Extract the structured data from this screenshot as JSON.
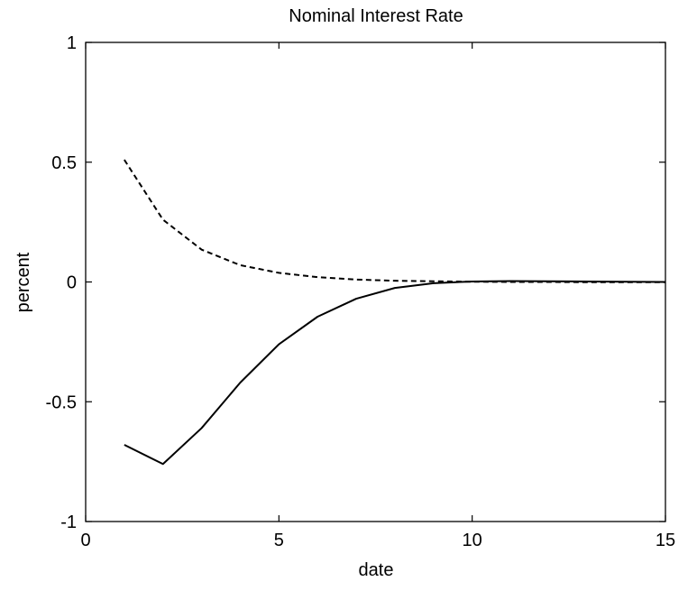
{
  "chart_data": {
    "type": "line",
    "title": "Nominal Interest Rate",
    "xlabel": "date",
    "ylabel": "percent",
    "xlim": [
      0,
      15
    ],
    "ylim": [
      -1,
      1
    ],
    "x_ticks": [
      0,
      5,
      10,
      15
    ],
    "y_ticks": [
      -1,
      -0.5,
      0,
      0.5,
      1
    ],
    "x_tick_labels": [
      "0",
      "5",
      "10",
      "15"
    ],
    "y_tick_labels": [
      "-1",
      "-0.5",
      "0",
      "0.5",
      "1"
    ],
    "grid": false,
    "series": [
      {
        "style": "solid",
        "color": "#000000",
        "x": [
          1,
          2,
          3,
          4,
          5,
          6,
          7,
          8,
          9,
          10,
          11,
          12,
          13,
          14,
          15
        ],
        "y": [
          -0.68,
          -0.76,
          -0.61,
          -0.42,
          -0.26,
          -0.145,
          -0.07,
          -0.025,
          -0.005,
          0.002,
          0.004,
          0.003,
          0.002,
          0.001,
          0.0
        ]
      },
      {
        "style": "dashed",
        "color": "#000000",
        "x": [
          1,
          2,
          3,
          4,
          5,
          6,
          7,
          8,
          9,
          10,
          11,
          12,
          13,
          14,
          15
        ],
        "y": [
          0.51,
          0.26,
          0.135,
          0.07,
          0.038,
          0.02,
          0.01,
          0.005,
          0.003,
          0.001,
          0.0,
          0.0,
          -0.001,
          -0.001,
          -0.001
        ]
      }
    ]
  }
}
